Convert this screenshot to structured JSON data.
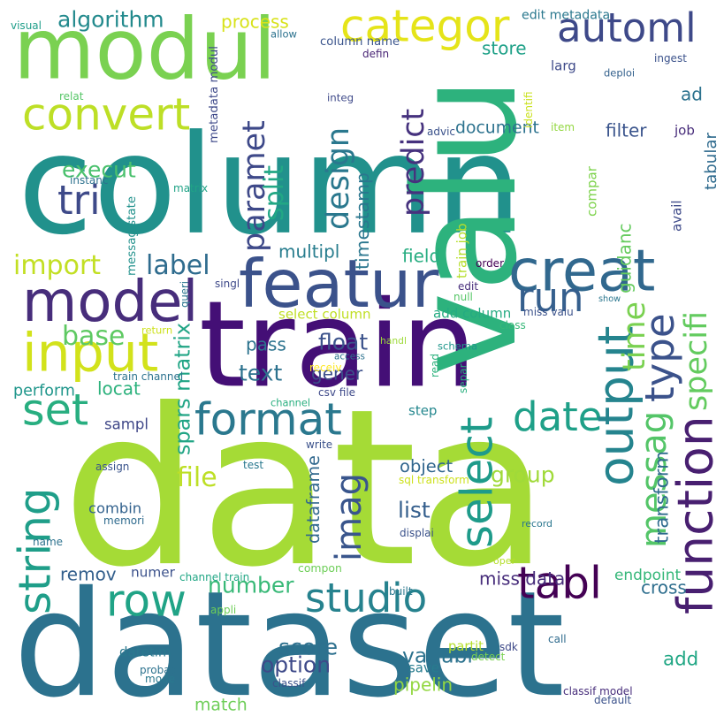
{
  "words": [
    {
      "text": "column",
      "color": "#21918c"
    },
    {
      "text": "data",
      "color": "#a5db36"
    },
    {
      "text": "dataset",
      "color": "#2c728e"
    },
    {
      "text": "train",
      "color": "#440f76"
    },
    {
      "text": "modul",
      "color": "#7ad151"
    },
    {
      "text": "valu",
      "color": "#2db27d"
    },
    {
      "text": "featur",
      "color": "#3b528b"
    },
    {
      "text": "model",
      "color": "#472d7b"
    },
    {
      "text": "creat",
      "color": "#31688e"
    },
    {
      "text": "input",
      "color": "#d2e21b"
    },
    {
      "text": "convert",
      "color": "#bddf26"
    },
    {
      "text": "categor",
      "color": "#e5e419"
    },
    {
      "text": "automl",
      "color": "#3e4989"
    },
    {
      "text": "row",
      "color": "#20a386"
    },
    {
      "text": "studio",
      "color": "#26828e"
    },
    {
      "text": "format",
      "color": "#2a788e"
    },
    {
      "text": "set",
      "color": "#28ae80"
    },
    {
      "text": "tri",
      "color": "#3e4a89"
    },
    {
      "text": "run",
      "color": "#355f8d"
    },
    {
      "text": "date",
      "color": "#1fa088"
    },
    {
      "text": "tabl",
      "color": "#440154"
    },
    {
      "text": "string",
      "color": "#1f9e89"
    },
    {
      "text": "select",
      "color": "#1e9b8a"
    },
    {
      "text": "output",
      "color": "#25848e"
    },
    {
      "text": "function",
      "color": "#481f70"
    },
    {
      "text": "imag",
      "color": "#39558c"
    },
    {
      "text": "type",
      "color": "#3b528b"
    },
    {
      "text": "time",
      "color": "#7ad151"
    },
    {
      "text": "messag",
      "color": "#54c568"
    },
    {
      "text": "specifi",
      "color": "#63cb5f"
    },
    {
      "text": "paramet",
      "color": "#3e4989"
    },
    {
      "text": "split",
      "color": "#22a785"
    },
    {
      "text": "design",
      "color": "#2a788e"
    },
    {
      "text": "predict",
      "color": "#46327e"
    },
    {
      "text": "import",
      "color": "#c2df23"
    },
    {
      "text": "label",
      "color": "#2f6c8e"
    },
    {
      "text": "base",
      "color": "#5ec962"
    },
    {
      "text": "execut",
      "color": "#4ac16d"
    },
    {
      "text": "algorithm",
      "color": "#238a8d"
    },
    {
      "text": "process",
      "color": "#d8e219"
    },
    {
      "text": "document",
      "color": "#2c728e"
    },
    {
      "text": "file",
      "color": "#bddf26"
    },
    {
      "text": "number",
      "color": "#38b977"
    },
    {
      "text": "add",
      "color": "#22a785"
    },
    {
      "text": "float",
      "color": "#3b528b"
    },
    {
      "text": "text",
      "color": "#2c728e"
    },
    {
      "text": "multipl",
      "color": "#287d8e"
    },
    {
      "text": "field",
      "color": "#27ad81"
    },
    {
      "text": "score",
      "color": "#2d708e"
    },
    {
      "text": "group",
      "color": "#a0da39"
    },
    {
      "text": "list",
      "color": "#355f8d"
    },
    {
      "text": "option",
      "color": "#3e4a89"
    },
    {
      "text": "variabl",
      "color": "#2c728e"
    },
    {
      "text": "timestamp",
      "color": "#2a768e"
    },
    {
      "text": "pipelin",
      "color": "#93d741"
    },
    {
      "text": "filter",
      "color": "#3a548c"
    },
    {
      "text": "ad",
      "color": "#2c728e"
    },
    {
      "text": "store",
      "color": "#1fa188"
    },
    {
      "text": "guidanc",
      "color": "#65cb5e"
    },
    {
      "text": "transform",
      "color": "#2f6b8e"
    },
    {
      "text": "endpoint",
      "color": "#35b779"
    },
    {
      "text": "cross",
      "color": "#2e6e8e"
    },
    {
      "text": "gener",
      "color": "#3c4f8a"
    },
    {
      "text": "perform",
      "color": "#1f968b"
    },
    {
      "text": "locat",
      "color": "#2db27d"
    },
    {
      "text": "pass",
      "color": "#2c738e"
    },
    {
      "text": "remov",
      "color": "#34608d"
    },
    {
      "text": "numer",
      "color": "#3b518b"
    },
    {
      "text": "spars matrix",
      "color": "#21a585"
    },
    {
      "text": "miss data",
      "color": "#472d7b"
    },
    {
      "text": "combin",
      "color": "#33628d"
    },
    {
      "text": "sampl",
      "color": "#3f4788"
    },
    {
      "text": "datetim",
      "color": "#2a788e"
    },
    {
      "text": "match",
      "color": "#6ece58"
    },
    {
      "text": "save",
      "color": "#287c8e"
    },
    {
      "text": "object",
      "color": "#31668e"
    },
    {
      "text": "step",
      "color": "#24878e"
    },
    {
      "text": "column name",
      "color": "#3a548c"
    },
    {
      "text": "add column",
      "color": "#25ab82"
    },
    {
      "text": "select column",
      "color": "#c0df25"
    },
    {
      "text": "dataframe",
      "color": "#31688e"
    },
    {
      "text": "edit metadata",
      "color": "#2a788e"
    },
    {
      "text": "larg",
      "color": "#3e4a89"
    },
    {
      "text": "job",
      "color": "#472c7a"
    },
    {
      "text": "tabular",
      "color": "#2f6b8e"
    },
    {
      "text": "ingest",
      "color": "#3b528b"
    },
    {
      "text": "deploi",
      "color": "#34618d"
    },
    {
      "text": "item",
      "color": "#93d741"
    },
    {
      "text": "integ",
      "color": "#3e4989"
    },
    {
      "text": "defin",
      "color": "#482475"
    },
    {
      "text": "advic",
      "color": "#3b528b"
    },
    {
      "text": "identifi",
      "color": "#cae11f"
    },
    {
      "text": "avail",
      "color": "#3e4a89"
    },
    {
      "text": "compar",
      "color": "#7fd34e"
    },
    {
      "text": "train job",
      "color": "#b5de2b"
    },
    {
      "text": "order",
      "color": "#440154"
    },
    {
      "text": "null",
      "color": "#56c667"
    },
    {
      "text": "edit",
      "color": "#472d7b"
    },
    {
      "text": "miss valu",
      "color": "#3b528b"
    },
    {
      "text": "show",
      "color": "#2a768e"
    },
    {
      "text": "class",
      "color": "#37b878"
    },
    {
      "text": "schema",
      "color": "#1f968b"
    },
    {
      "text": "read",
      "color": "#2db27d"
    },
    {
      "text": "separ",
      "color": "#2ab07f"
    },
    {
      "text": "access",
      "color": "#2c728e"
    },
    {
      "text": "receiv",
      "color": "#fde725"
    },
    {
      "text": "handl",
      "color": "#9fda3a"
    },
    {
      "text": "csv file",
      "color": "#3e4989"
    },
    {
      "text": "channel",
      "color": "#29af7f"
    },
    {
      "text": "train channel",
      "color": "#2c728e"
    },
    {
      "text": "return",
      "color": "#cde11d"
    },
    {
      "text": "singl",
      "color": "#3e4989"
    },
    {
      "text": "queri",
      "color": "#2a768e"
    },
    {
      "text": "messag state",
      "color": "#21918c"
    },
    {
      "text": "matrix",
      "color": "#20a386"
    },
    {
      "text": "instanc",
      "color": "#2d718e"
    },
    {
      "text": "metadata modul",
      "color": "#3e4989"
    },
    {
      "text": "relat",
      "color": "#56c667"
    },
    {
      "text": "allow",
      "color": "#2c728e"
    },
    {
      "text": "visual",
      "color": "#1f9e89"
    },
    {
      "text": "write",
      "color": "#3b528b"
    },
    {
      "text": "test",
      "color": "#2a788e"
    },
    {
      "text": "sql transform",
      "color": "#cde11d"
    },
    {
      "text": "assign",
      "color": "#3a548c"
    },
    {
      "text": "memori",
      "color": "#2f6b8e"
    },
    {
      "text": "name",
      "color": "#2c728e"
    },
    {
      "text": "displai",
      "color": "#3b528b"
    },
    {
      "text": "record",
      "color": "#2a768e"
    },
    {
      "text": "oper",
      "color": "#b5de2b"
    },
    {
      "text": "compon",
      "color": "#6ece58"
    },
    {
      "text": "channel train",
      "color": "#22a785"
    },
    {
      "text": "built",
      "color": "#2a788e"
    },
    {
      "text": "appli",
      "color": "#6ece58"
    },
    {
      "text": "partit",
      "color": "#b5de2b"
    },
    {
      "text": "sdk",
      "color": "#3e4989"
    },
    {
      "text": "detect",
      "color": "#7ad151"
    },
    {
      "text": "call",
      "color": "#2f6b8e"
    },
    {
      "text": "probabl",
      "color": "#2c728e"
    },
    {
      "text": "mode",
      "color": "#2a788e"
    },
    {
      "text": "classif",
      "color": "#3b528b"
    },
    {
      "text": "classif model",
      "color": "#472d7b"
    },
    {
      "text": "default",
      "color": "#3b528b"
    }
  ]
}
